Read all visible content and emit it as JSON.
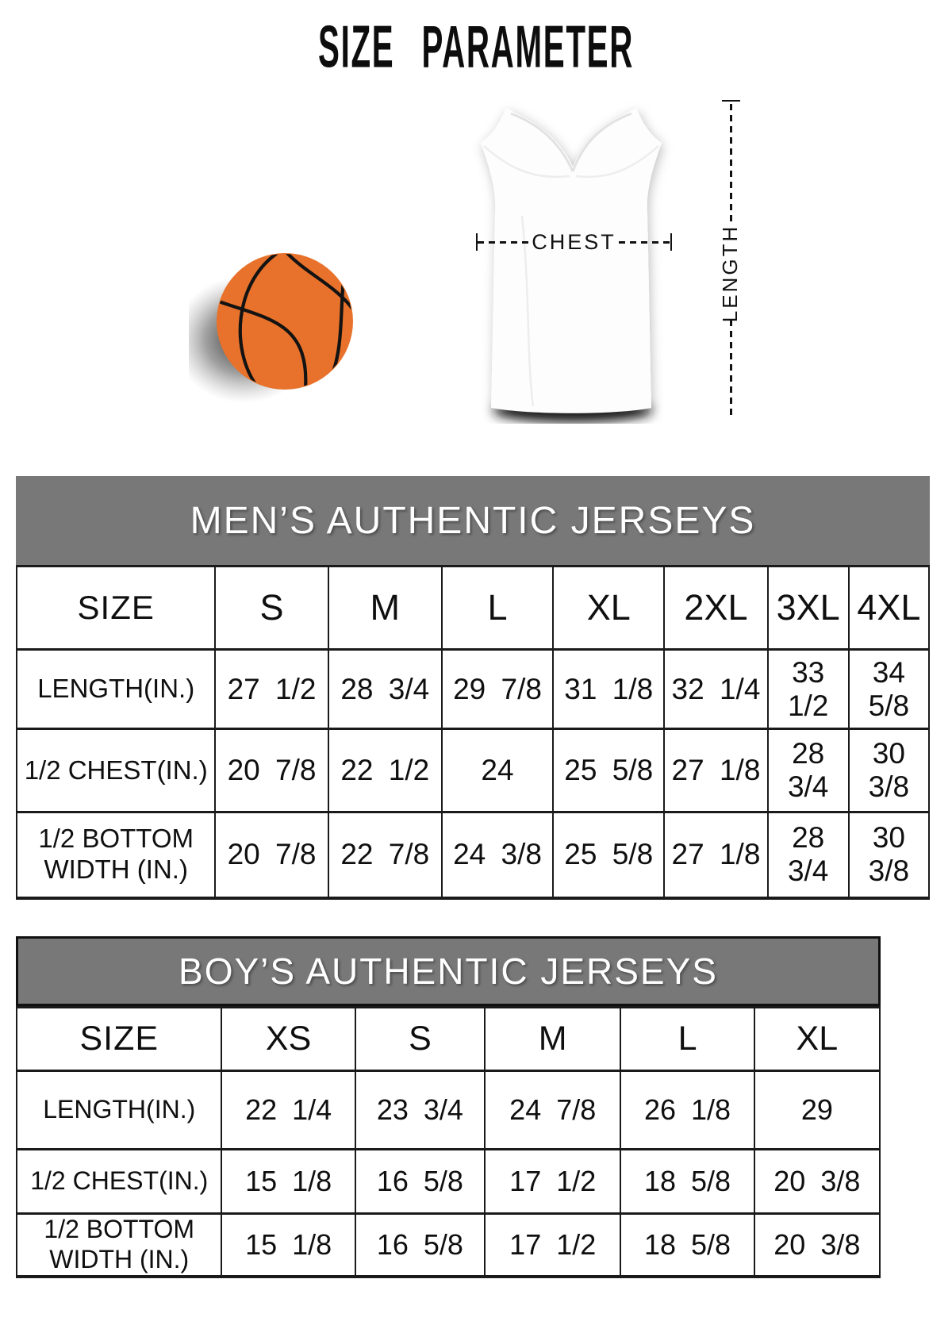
{
  "title": "SIZE PARAMETER",
  "diagram": {
    "chest_label": "CHEST",
    "length_label": "LENGTH",
    "basketball_icon": "basketball-illustration",
    "jersey_icon": "jersey-illustration"
  },
  "tables": [
    {
      "header": "MEN’S AUTHENTIC JERSEYS",
      "size_label": "SIZE",
      "sizes": [
        "S",
        "M",
        "L",
        "XL",
        "2XL",
        "3XL",
        "4XL"
      ],
      "rows": [
        {
          "label": "LENGTH(IN.)",
          "values": [
            "27 1/2",
            "28 3/4",
            "29 7/8",
            "31 1/8",
            "32 1/4",
            "33 1/2",
            "34 5/8"
          ]
        },
        {
          "label": "1/2 CHEST(IN.)",
          "values": [
            "20 7/8",
            "22 1/2",
            "24",
            "25 5/8",
            "27 1/8",
            "28 3/4",
            "30 3/8"
          ]
        },
        {
          "label": "1/2 BOTTOM WIDTH (IN.)",
          "values": [
            "20 7/8",
            "22 7/8",
            "24 3/8",
            "25 5/8",
            "27 1/8",
            "28 3/4",
            "30 3/8"
          ]
        }
      ]
    },
    {
      "header": "BOY’S AUTHENTIC JERSEYS",
      "size_label": "SIZE",
      "sizes": [
        "XS",
        "S",
        "M",
        "L",
        "XL"
      ],
      "rows": [
        {
          "label": "LENGTH(IN.)",
          "values": [
            "22 1/4",
            "23 3/4",
            "24 7/8",
            "26 1/8",
            "29"
          ]
        },
        {
          "label": "1/2 CHEST(IN.)",
          "values": [
            "15 1/8",
            "16 5/8",
            "17 1/2",
            "18 5/8",
            "20 3/8"
          ]
        },
        {
          "label": "1/2 BOTTOM WIDTH (IN.)",
          "values": [
            "15 1/8",
            "16 5/8",
            "17 1/2",
            "18 5/8",
            "20 3/8"
          ]
        }
      ]
    }
  ],
  "colors": {
    "background": "#ffffff",
    "band_bg": "#787878",
    "band_text": "#ffffff",
    "table_border": "#1a1a1a",
    "text": "#0f0f0f",
    "basketball": "#e8722b",
    "basketball_seam": "#131313"
  }
}
